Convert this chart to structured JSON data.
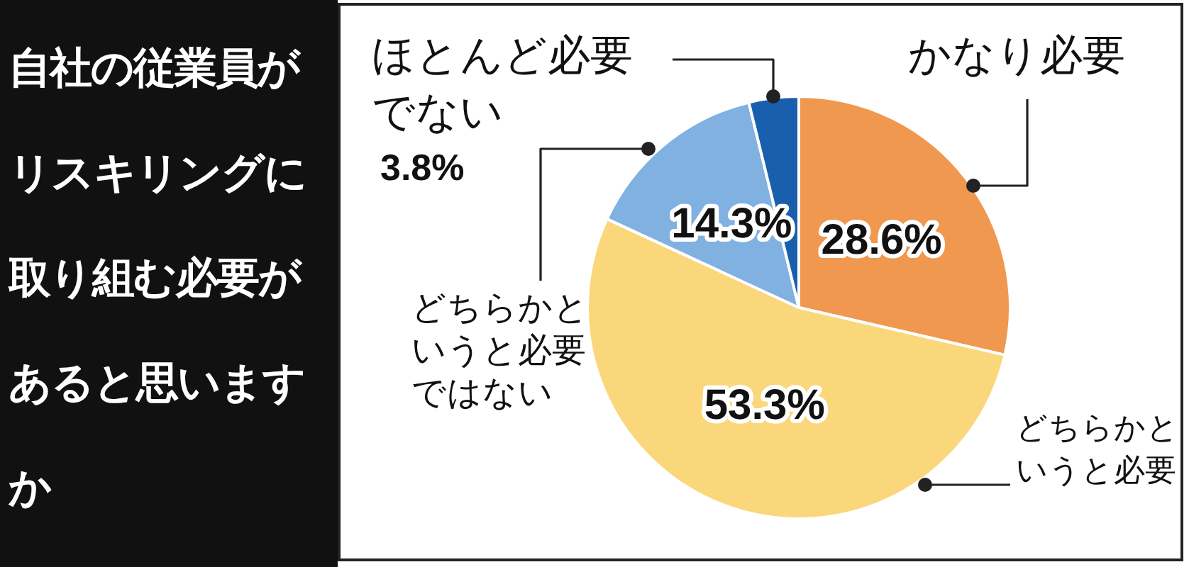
{
  "chart_data": {
    "type": "pie",
    "title": "自社の従業員がリスキリングに取り組む必要があると思いますか",
    "categories": [
      "かなり必要",
      "どちらかというと必要",
      "どちらかというと必要ではない",
      "ほとんど必要でない"
    ],
    "values": [
      28.6,
      53.3,
      14.3,
      3.8
    ],
    "colors": [
      "#f0984f",
      "#fad77a",
      "#80b1e1",
      "#1a5fae"
    ],
    "value_labels": [
      "28.6%",
      "53.3%",
      "14.3%",
      "3.8%"
    ]
  }
}
